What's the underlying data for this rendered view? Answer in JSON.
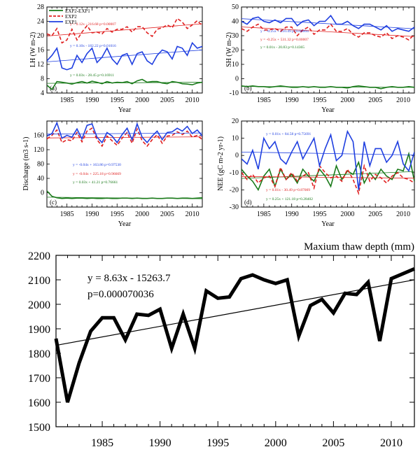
{
  "figure": {
    "years": [
      1981,
      1982,
      1983,
      1984,
      1985,
      1986,
      1987,
      1988,
      1989,
      1990,
      1991,
      1992,
      1993,
      1994,
      1995,
      1996,
      1997,
      1998,
      1999,
      2000,
      2001,
      2002,
      2003,
      2004,
      2005,
      2006,
      2007,
      2008,
      2009,
      2010,
      2011,
      2012
    ],
    "legend": [
      "EXP2-EXP1",
      "EXP2",
      "EXP1"
    ],
    "colors": {
      "EXP2-EXP1": "#1a7a1a",
      "EXP2": "#e02020",
      "EXP1": "#1f3fe0"
    }
  },
  "chart_data": [
    {
      "id": "a",
      "type": "line",
      "panel_label": "(a)",
      "ylabel": "LH (W m-2)",
      "xlabel": "Year",
      "ylim": [
        4,
        28
      ],
      "yticks": [
        4,
        8,
        12,
        16,
        20,
        24,
        28
      ],
      "xticks": [
        1985,
        1990,
        1995,
        2000,
        2005,
        2010
      ],
      "series": [
        {
          "name": "EXP2-EXP1",
          "values": [
            6.2,
            5.0,
            7.2,
            7.0,
            6.8,
            6.5,
            6.9,
            7.2,
            6.8,
            7.3,
            7.0,
            6.6,
            7.2,
            6.8,
            7.0,
            6.9,
            7.2,
            6.6,
            7.4,
            7.8,
            7.0,
            7.2,
            7.2,
            6.8,
            6.6,
            7.2,
            7.0,
            6.6,
            6.5,
            6.3,
            6.8,
            7.0
          ]
        },
        {
          "name": "EXP2",
          "values": [
            20.5,
            20.0,
            22.0,
            18.0,
            18.8,
            21.8,
            18.8,
            21.0,
            22.8,
            20.8,
            21.0,
            20.5,
            22.0,
            21.0,
            21.8,
            21.8,
            22.5,
            21.0,
            22.5,
            22.5,
            20.8,
            19.8,
            21.8,
            22.2,
            23.0,
            22.2,
            24.8,
            23.8,
            22.0,
            23.0,
            24.2,
            22.8
          ]
        },
        {
          "name": "EXP1",
          "values": [
            13.0,
            14.5,
            16.5,
            11.0,
            10.5,
            11.0,
            14.5,
            12.5,
            15.0,
            16.5,
            12.5,
            14.0,
            16.5,
            13.5,
            12.0,
            14.5,
            15.0,
            12.0,
            15.0,
            15.5,
            13.0,
            12.0,
            14.5,
            16.0,
            15.5,
            13.5,
            17.0,
            16.5,
            14.5,
            18.0,
            16.5,
            17.0
          ]
        }
      ],
      "regressions": [
        {
          "series": "EXP1",
          "text": "y = 0.10x - 182.22  p=0.01016"
        },
        {
          "series": "EXP2",
          "text": "y = 0.12x - 216.68  p=0.00007"
        },
        {
          "series": "EXP2-EXP1",
          "text": "y = 0.03x - 28.45  p=0.16911"
        }
      ]
    },
    {
      "id": "b",
      "type": "line",
      "panel_label": "(b)",
      "ylabel": "SH (W m-2)",
      "xlabel": "Year",
      "ylim": [
        -10,
        50
      ],
      "yticks": [
        -10,
        0,
        10,
        20,
        30,
        40,
        50
      ],
      "xticks": [
        1985,
        1990,
        1995,
        2000,
        2005,
        2010
      ],
      "series": [
        {
          "name": "EXP2-EXP1",
          "values": [
            -5,
            -5.5,
            -5,
            -5.5,
            -5.5,
            -6,
            -5.5,
            -5,
            -5.5,
            -6,
            -6,
            -5.5,
            -6,
            -5.5,
            -6,
            -6,
            -5.5,
            -6,
            -6,
            -6.5,
            -5.5,
            -5,
            -5.5,
            -6,
            -6,
            -7,
            -6,
            -5.5,
            -6,
            -6,
            -5.5,
            -6
          ]
        },
        {
          "name": "EXP2",
          "values": [
            35,
            33,
            36,
            38,
            34,
            34,
            35,
            33,
            36,
            36,
            30,
            34,
            36,
            31,
            34,
            34,
            38,
            33,
            33,
            35,
            31,
            29,
            32,
            32,
            30,
            29,
            32,
            28,
            30,
            29,
            27,
            31
          ]
        },
        {
          "name": "EXP1",
          "values": [
            40,
            38,
            42,
            43,
            40,
            39,
            41,
            39,
            42,
            42,
            37,
            40,
            41,
            37,
            40,
            40,
            44,
            38,
            38,
            40,
            37,
            35,
            38,
            38,
            36,
            34,
            37,
            33,
            35,
            34,
            33,
            36
          ]
        }
      ],
      "regressions": [
        {
          "series": "EXP1",
          "text": "y = -0.25x + 510.49  p=0.00004"
        },
        {
          "series": "EXP2",
          "text": "y = -0.25x + 531.32  p=0.00007"
        },
        {
          "series": "EXP2-EXP1",
          "text": "y = 0.01x - 20.83  p=0.14365"
        }
      ]
    },
    {
      "id": "c",
      "type": "line",
      "panel_label": "(c)",
      "ylabel": "Discharge (m3 s-1)",
      "xlabel": "Year",
      "ylim": [
        -40,
        200
      ],
      "yticks": [
        0,
        40,
        80,
        120,
        160
      ],
      "xticks": [
        1985,
        1990,
        1995,
        2000,
        2005,
        2010
      ],
      "series": [
        {
          "name": "EXP2-EXP1",
          "values": [
            5,
            -10,
            -14,
            -16,
            -15,
            -16,
            -15,
            -15,
            -16,
            -15,
            -16,
            -16,
            -15,
            -16,
            -16,
            -15,
            -15,
            -16,
            -15,
            -16,
            -16,
            -15,
            -16,
            -16,
            -15,
            -15,
            -16,
            -15,
            -15,
            -16,
            -15,
            -14
          ]
        },
        {
          "name": "EXP2",
          "values": [
            150,
            160,
            175,
            140,
            148,
            145,
            168,
            142,
            172,
            180,
            148,
            130,
            158,
            145,
            132,
            152,
            168,
            138,
            178,
            145,
            130,
            148,
            162,
            138,
            158,
            160,
            170,
            162,
            172,
            155,
            160,
            148
          ]
        },
        {
          "name": "EXP1",
          "values": [
            158,
            165,
            195,
            152,
            160,
            155,
            178,
            150,
            188,
            192,
            155,
            140,
            168,
            158,
            140,
            162,
            180,
            148,
            192,
            155,
            140,
            158,
            172,
            148,
            168,
            170,
            180,
            172,
            185,
            165,
            175,
            158
          ]
        }
      ],
      "regressions": [
        {
          "series": "EXP1",
          "text": "y = -0.04x + 163.86  p=0.97530"
        },
        {
          "series": "EXP2",
          "text": "y = -0.04x + 225.18  p=0.96669"
        },
        {
          "series": "EXP2-EXP1",
          "text": "y = 0.03x + 41.21  p=0.76661"
        }
      ]
    },
    {
      "id": "d",
      "type": "line",
      "panel_label": "(d)",
      "ylabel": "NEE (gC m-2 yr-1)",
      "xlabel": "Year",
      "ylim": [
        -30,
        20
      ],
      "yticks": [
        -30,
        -20,
        -10,
        0,
        10,
        20
      ],
      "xticks": [
        1985,
        1990,
        1995,
        2000,
        2005,
        2010
      ],
      "series": [
        {
          "name": "EXP2-EXP1",
          "values": [
            -8,
            -12,
            -15,
            -20,
            -12,
            -8,
            -18,
            -8,
            -14,
            -11,
            -16,
            -8,
            -12,
            -15,
            -8,
            -12,
            -18,
            -6,
            -14,
            -9,
            -11,
            -4,
            -16,
            -10,
            -14,
            -8,
            -12,
            -14,
            -8,
            -9,
            1,
            -15
          ]
        },
        {
          "name": "EXP2",
          "values": [
            -10,
            -14,
            -11,
            -16,
            -13,
            -12,
            -18,
            -7,
            -14,
            -10,
            -15,
            -12,
            -10,
            -19,
            -6,
            -10,
            -13,
            -12,
            -15,
            -8,
            -14,
            -22,
            -6,
            -15,
            -11,
            -13,
            -16,
            -12,
            -10,
            -13,
            -14,
            -16
          ]
        },
        {
          "name": "EXP1",
          "values": [
            -2,
            -5,
            3,
            -8,
            10,
            4,
            8,
            -2,
            -5,
            2,
            8,
            -2,
            4,
            10,
            -6,
            4,
            12,
            -3,
            0,
            14,
            8,
            -20,
            8,
            -6,
            4,
            4,
            -4,
            0,
            8,
            -5,
            -9,
            2
          ]
        }
      ],
      "regressions": [
        {
          "series": "EXP1",
          "text": "y = 0.01x + 84.58  p=0.75691"
        },
        {
          "series": "EXP2",
          "text": "y = 0.01x - 30.49  p=0.87009"
        },
        {
          "series": "EXP2-EXP1",
          "text": "y = 0.25x + 121.18  p=0.28402"
        }
      ]
    },
    {
      "id": "thaw",
      "type": "line",
      "title": "Maxium thaw depth (mm)",
      "ylim": [
        1500,
        2200
      ],
      "yticks": [
        1500,
        1600,
        1700,
        1800,
        1900,
        2000,
        2100,
        2200
      ],
      "xticks": [
        1985,
        1990,
        1995,
        2000,
        2005,
        2010
      ],
      "series": [
        {
          "name": "",
          "values": [
            1860,
            1600,
            1760,
            1890,
            1945,
            1945,
            1855,
            1960,
            1955,
            1980,
            1820,
            1960,
            1820,
            2055,
            2025,
            2030,
            2105,
            2120,
            2100,
            2085,
            2100,
            1870,
            1995,
            2020,
            1965,
            2045,
            2040,
            2090,
            1850,
            2105,
            2125,
            2145
          ]
        }
      ],
      "regression_text": [
        "y =  8.63x - 15263.7",
        "p=0.000070036"
      ],
      "trend": {
        "slope": 8.63,
        "intercept": -15263.7
      }
    }
  ]
}
